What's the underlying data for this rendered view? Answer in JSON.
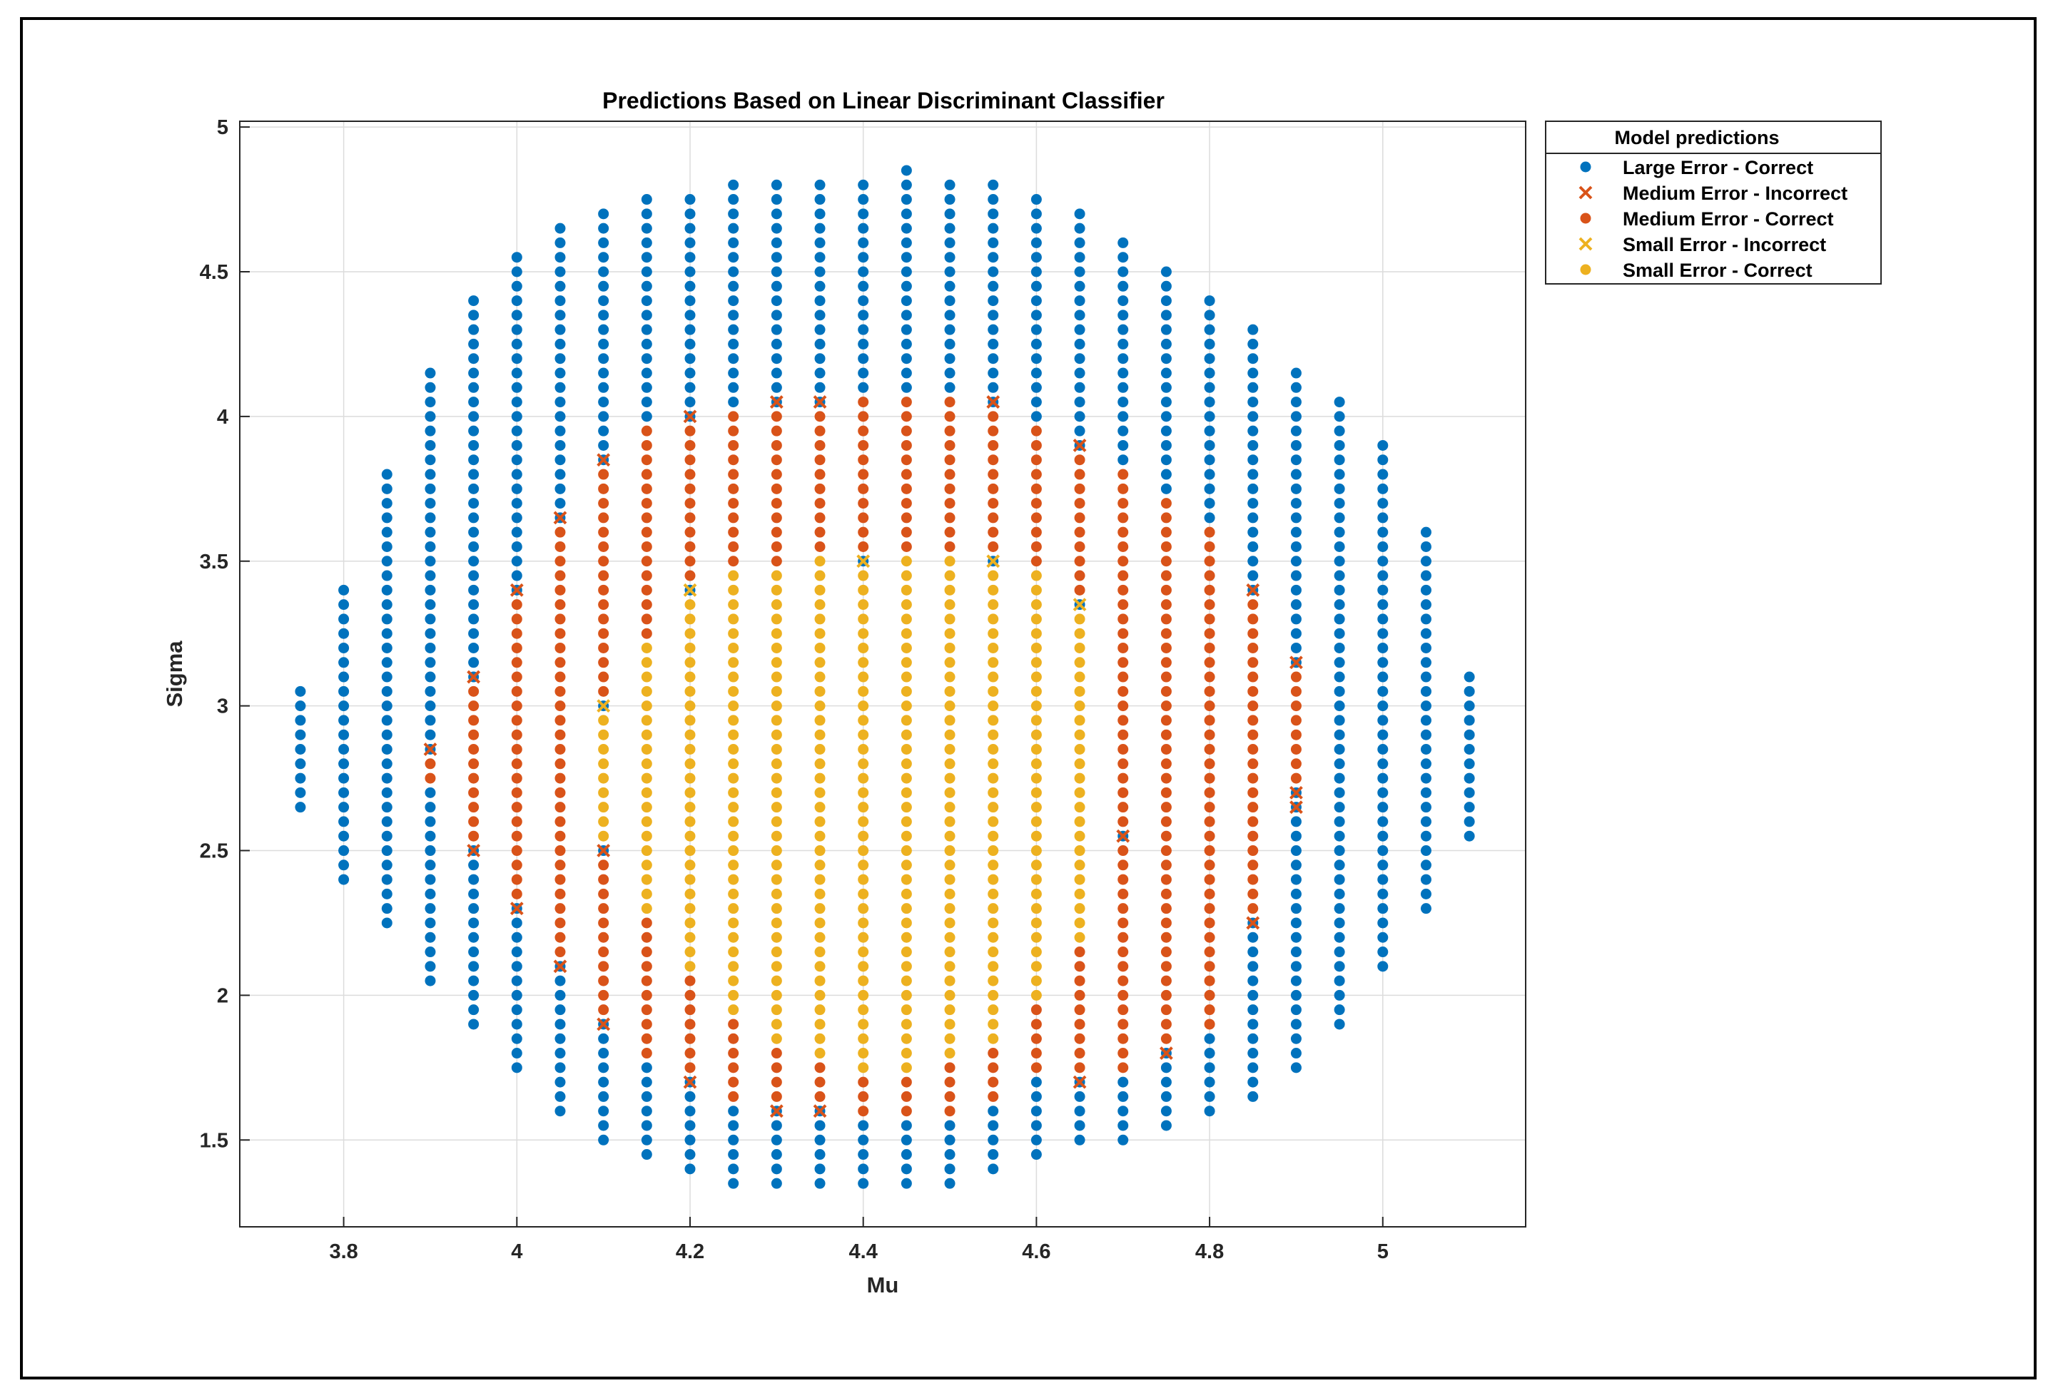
{
  "chart_data": {
    "type": "scatter",
    "title": "Predictions Based on Linear Discriminant Classifier",
    "xlabel": "Mu",
    "ylabel": "Sigma",
    "xlim": [
      3.68,
      5.165
    ],
    "ylim": [
      1.2,
      5.02
    ],
    "xticks": [
      3.8,
      4,
      4.2,
      4.4,
      4.6,
      4.8,
      5
    ],
    "xtick_labels": [
      "3.8",
      "4",
      "4.2",
      "4.4",
      "4.6",
      "4.8",
      "5"
    ],
    "yticks": [
      1.5,
      2,
      2.5,
      3,
      3.5,
      4,
      4.5,
      5
    ],
    "ytick_labels": [
      "1.5",
      "2",
      "2.5",
      "3",
      "3.5",
      "4",
      "4.5",
      "5"
    ],
    "grid": true,
    "legend": {
      "title": "Model predictions",
      "location": "outside-top-right"
    },
    "grid_step": {
      "mu": 0.05,
      "sigma": 0.05
    },
    "colors": {
      "large": "#0072BD",
      "medium": "#D95319",
      "small": "#EDB120"
    },
    "series": [
      {
        "name": "Large Error - Correct",
        "category": "large",
        "marker": "circle"
      },
      {
        "name": "Medium Error - Incorrect",
        "category": "medium",
        "marker": "x"
      },
      {
        "name": "Medium Error - Correct",
        "category": "medium",
        "marker": "circle"
      },
      {
        "name": "Small Error - Incorrect",
        "category": "small",
        "marker": "x"
      },
      {
        "name": "Small Error - Correct",
        "category": "small",
        "marker": "circle"
      }
    ],
    "columns": [
      {
        "mu": 3.75,
        "sigma_range": [
          2.65,
          3.05
        ],
        "medium": null,
        "small": null
      },
      {
        "mu": 3.8,
        "sigma_range": [
          2.4,
          3.4
        ],
        "medium": null,
        "small": null
      },
      {
        "mu": 3.85,
        "sigma_range": [
          2.25,
          3.8
        ],
        "medium": null,
        "small": null
      },
      {
        "mu": 3.9,
        "sigma_range": [
          2.05,
          4.15
        ],
        "medium": [
          2.75,
          2.85
        ],
        "small": null
      },
      {
        "mu": 3.95,
        "sigma_range": [
          1.9,
          4.4
        ],
        "medium": [
          2.5,
          3.1
        ],
        "small": null
      },
      {
        "mu": 4.0,
        "sigma_range": [
          1.75,
          4.55
        ],
        "medium": [
          2.3,
          3.4
        ],
        "small": null
      },
      {
        "mu": 4.05,
        "sigma_range": [
          1.6,
          4.65
        ],
        "medium": [
          2.1,
          3.65
        ],
        "small": null
      },
      {
        "mu": 4.1,
        "sigma_range": [
          1.5,
          4.7
        ],
        "medium": [
          1.9,
          3.85
        ],
        "small": [
          2.5,
          3.0
        ]
      },
      {
        "mu": 4.15,
        "sigma_range": [
          1.45,
          4.75
        ],
        "medium": [
          1.8,
          3.95
        ],
        "small": [
          2.3,
          3.2
        ]
      },
      {
        "mu": 4.2,
        "sigma_range": [
          1.4,
          4.75
        ],
        "medium": [
          1.7,
          4.0
        ],
        "small": [
          2.1,
          3.4
        ]
      },
      {
        "mu": 4.25,
        "sigma_range": [
          1.35,
          4.8
        ],
        "medium": [
          1.65,
          4.0
        ],
        "small": [
          1.95,
          3.45
        ]
      },
      {
        "mu": 4.3,
        "sigma_range": [
          1.35,
          4.8
        ],
        "medium": [
          1.6,
          4.05
        ],
        "small": [
          1.85,
          3.45
        ]
      },
      {
        "mu": 4.35,
        "sigma_range": [
          1.35,
          4.8
        ],
        "medium": [
          1.6,
          4.05
        ],
        "small": [
          1.8,
          3.5
        ]
      },
      {
        "mu": 4.4,
        "sigma_range": [
          1.35,
          4.8
        ],
        "medium": [
          1.6,
          4.05
        ],
        "small": [
          1.75,
          3.5
        ]
      },
      {
        "mu": 4.45,
        "sigma_range": [
          1.35,
          4.85
        ],
        "medium": [
          1.6,
          4.05
        ],
        "small": [
          1.75,
          3.5
        ]
      },
      {
        "mu": 4.5,
        "sigma_range": [
          1.35,
          4.8
        ],
        "medium": [
          1.6,
          4.05
        ],
        "small": [
          1.8,
          3.5
        ]
      },
      {
        "mu": 4.55,
        "sigma_range": [
          1.4,
          4.8
        ],
        "medium": [
          1.65,
          4.05
        ],
        "small": [
          1.85,
          3.5
        ]
      },
      {
        "mu": 4.6,
        "sigma_range": [
          1.45,
          4.75
        ],
        "medium": [
          1.75,
          3.95
        ],
        "small": [
          2.0,
          3.45
        ]
      },
      {
        "mu": 4.65,
        "sigma_range": [
          1.5,
          4.7
        ],
        "medium": [
          1.75,
          3.9
        ],
        "small": [
          2.2,
          3.35
        ]
      },
      {
        "mu": 4.7,
        "sigma_range": [
          1.5,
          4.6
        ],
        "medium": [
          1.75,
          3.8
        ],
        "small": null
      },
      {
        "mu": 4.75,
        "sigma_range": [
          1.55,
          4.5
        ],
        "medium": [
          1.8,
          3.7
        ],
        "small": null
      },
      {
        "mu": 4.8,
        "sigma_range": [
          1.6,
          4.4
        ],
        "medium": [
          1.9,
          3.6
        ],
        "small": null
      },
      {
        "mu": 4.85,
        "sigma_range": [
          1.65,
          4.3
        ],
        "medium": [
          2.25,
          3.4
        ],
        "small": null
      },
      {
        "mu": 4.9,
        "sigma_range": [
          1.75,
          4.15
        ],
        "medium": [
          2.7,
          3.1
        ],
        "small": null
      },
      {
        "mu": 4.95,
        "sigma_range": [
          1.9,
          4.05
        ],
        "medium": null,
        "small": null
      },
      {
        "mu": 5.0,
        "sigma_range": [
          2.1,
          3.9
        ],
        "medium": null,
        "small": null
      },
      {
        "mu": 5.05,
        "sigma_range": [
          2.3,
          3.6
        ],
        "medium": null,
        "small": null
      },
      {
        "mu": 5.1,
        "sigma_range": [
          2.55,
          3.1
        ],
        "medium": null,
        "small": null
      }
    ],
    "incorrect_points": [
      {
        "mu": 3.9,
        "sigma": 2.85,
        "series": "Medium Error - Incorrect"
      },
      {
        "mu": 3.95,
        "sigma": 3.1,
        "series": "Medium Error - Incorrect"
      },
      {
        "mu": 3.95,
        "sigma": 2.5,
        "series": "Medium Error - Incorrect"
      },
      {
        "mu": 4.0,
        "sigma": 2.3,
        "series": "Medium Error - Incorrect"
      },
      {
        "mu": 4.05,
        "sigma": 3.65,
        "series": "Medium Error - Incorrect"
      },
      {
        "mu": 4.05,
        "sigma": 2.1,
        "series": "Medium Error - Incorrect"
      },
      {
        "mu": 4.1,
        "sigma": 3.85,
        "series": "Medium Error - Incorrect"
      },
      {
        "mu": 4.1,
        "sigma": 1.9,
        "series": "Medium Error - Incorrect"
      },
      {
        "mu": 4.1,
        "sigma": 2.5,
        "series": "Medium Error - Incorrect"
      },
      {
        "mu": 4.2,
        "sigma": 4.0,
        "series": "Medium Error - Incorrect"
      },
      {
        "mu": 4.2,
        "sigma": 1.7,
        "series": "Medium Error - Incorrect"
      },
      {
        "mu": 4.3,
        "sigma": 4.05,
        "series": "Medium Error - Incorrect"
      },
      {
        "mu": 4.3,
        "sigma": 1.6,
        "series": "Medium Error - Incorrect"
      },
      {
        "mu": 4.35,
        "sigma": 4.05,
        "series": "Medium Error - Incorrect"
      },
      {
        "mu": 4.35,
        "sigma": 1.6,
        "series": "Medium Error - Incorrect"
      },
      {
        "mu": 4.55,
        "sigma": 4.05,
        "series": "Medium Error - Incorrect"
      },
      {
        "mu": 4.65,
        "sigma": 3.9,
        "series": "Medium Error - Incorrect"
      },
      {
        "mu": 4.65,
        "sigma": 1.7,
        "series": "Medium Error - Incorrect"
      },
      {
        "mu": 4.7,
        "sigma": 2.55,
        "series": "Medium Error - Incorrect"
      },
      {
        "mu": 4.75,
        "sigma": 1.8,
        "series": "Medium Error - Incorrect"
      },
      {
        "mu": 4.85,
        "sigma": 3.4,
        "series": "Medium Error - Incorrect"
      },
      {
        "mu": 4.85,
        "sigma": 2.25,
        "series": "Medium Error - Incorrect"
      },
      {
        "mu": 4.9,
        "sigma": 3.15,
        "series": "Medium Error - Incorrect"
      },
      {
        "mu": 4.9,
        "sigma": 2.7,
        "series": "Medium Error - Incorrect"
      },
      {
        "mu": 4.0,
        "sigma": 3.4,
        "series": "Medium Error - Incorrect"
      },
      {
        "mu": 4.9,
        "sigma": 2.65,
        "series": "Medium Error - Incorrect"
      },
      {
        "mu": 4.1,
        "sigma": 3.0,
        "series": "Small Error - Incorrect"
      },
      {
        "mu": 4.2,
        "sigma": 3.4,
        "series": "Small Error - Incorrect"
      },
      {
        "mu": 4.4,
        "sigma": 3.5,
        "series": "Small Error - Incorrect"
      },
      {
        "mu": 4.55,
        "sigma": 3.5,
        "series": "Small Error - Incorrect"
      },
      {
        "mu": 4.65,
        "sigma": 3.35,
        "series": "Small Error - Incorrect"
      }
    ]
  }
}
